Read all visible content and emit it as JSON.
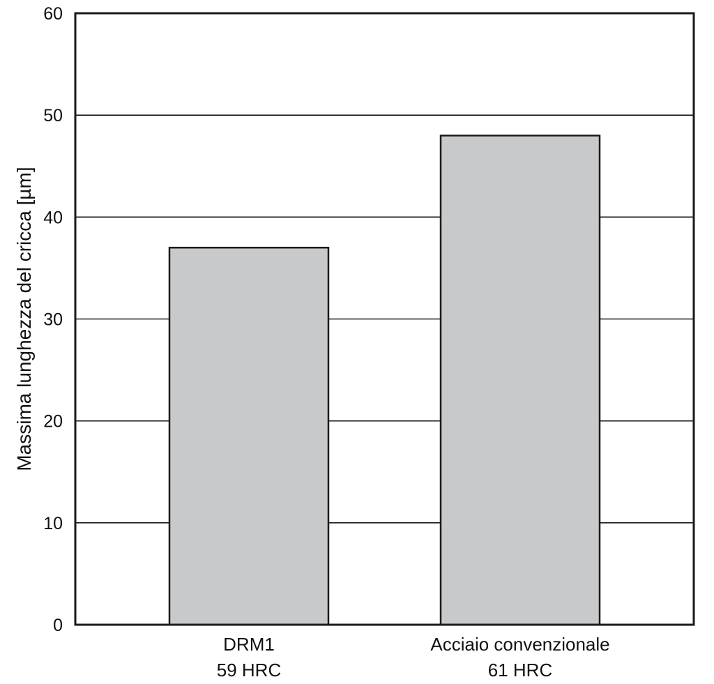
{
  "chart_data": {
    "type": "bar",
    "title": "",
    "xlabel": "",
    "ylabel": "Massima lunghezza del cricca [µm]",
    "ylim": [
      0,
      60
    ],
    "yticks": [
      0,
      10,
      20,
      30,
      40,
      50,
      60
    ],
    "grid": true,
    "categories": [
      {
        "name": "DRM1",
        "sub": "59 HRC"
      },
      {
        "name": "Acciaio convenzionale",
        "sub": "61 HRC"
      }
    ],
    "values": [
      37,
      48
    ],
    "colors": {
      "bar_fill": "#c8c9cb",
      "bar_stroke": "#1a1a1a",
      "grid": "#1a1a1a",
      "frame": "#1a1a1a"
    }
  }
}
